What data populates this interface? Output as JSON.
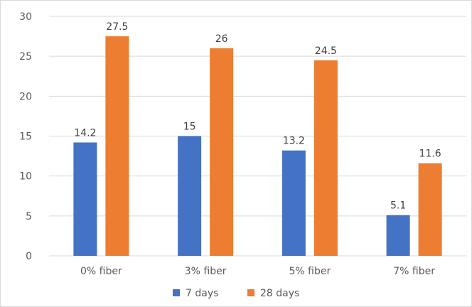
{
  "chart_data": {
    "type": "bar",
    "title": "",
    "xlabel": "",
    "ylabel": "",
    "categories": [
      "0% fiber",
      "3% fiber",
      "5% fiber",
      "7% fiber"
    ],
    "series": [
      {
        "name": "7 days",
        "color": "#4472c4",
        "values": [
          14.2,
          15,
          13.2,
          5.1
        ],
        "labels": [
          "14.2",
          "15",
          "13.2",
          "5.1"
        ]
      },
      {
        "name": "28 days",
        "color": "#ed7d31",
        "values": [
          27.5,
          26,
          24.5,
          11.6
        ],
        "labels": [
          "27.5",
          "26",
          "24.5",
          "11.6"
        ]
      }
    ],
    "ylim": [
      0,
      30
    ],
    "yticks": [
      0,
      5,
      10,
      15,
      20,
      25,
      30
    ],
    "ytick_labels": [
      "0",
      "5",
      "10",
      "15",
      "20",
      "25",
      "30"
    ],
    "grid": true,
    "gridline_color": "#d9d9d9",
    "legend_position": "bottom"
  }
}
